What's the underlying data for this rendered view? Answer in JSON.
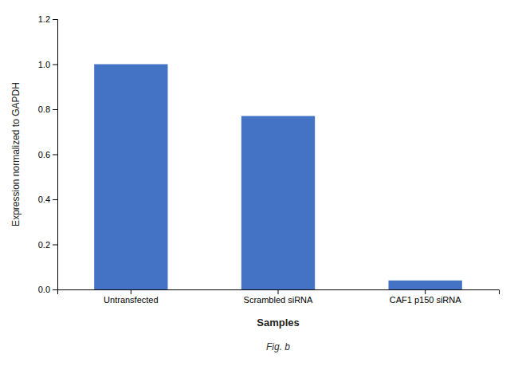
{
  "chart_data": {
    "type": "bar",
    "categories": [
      "Untransfected",
      "Scrambled siRNA",
      "CAF1 p150 siRNA"
    ],
    "values": [
      1.0,
      0.77,
      0.04
    ],
    "color": "#4472c4",
    "xlabel": "Samples",
    "ylabel": "Expression normalized to GAPDH",
    "ylim": [
      0,
      1.2
    ],
    "yticks": [
      {
        "value": 0,
        "label": "0.0"
      },
      0.2,
      0.4,
      0.6,
      0.8,
      {
        "value": 1.0,
        "label": "1.0"
      },
      1.2
    ],
    "grid": false,
    "annotations": [
      "Fig. b"
    ]
  }
}
